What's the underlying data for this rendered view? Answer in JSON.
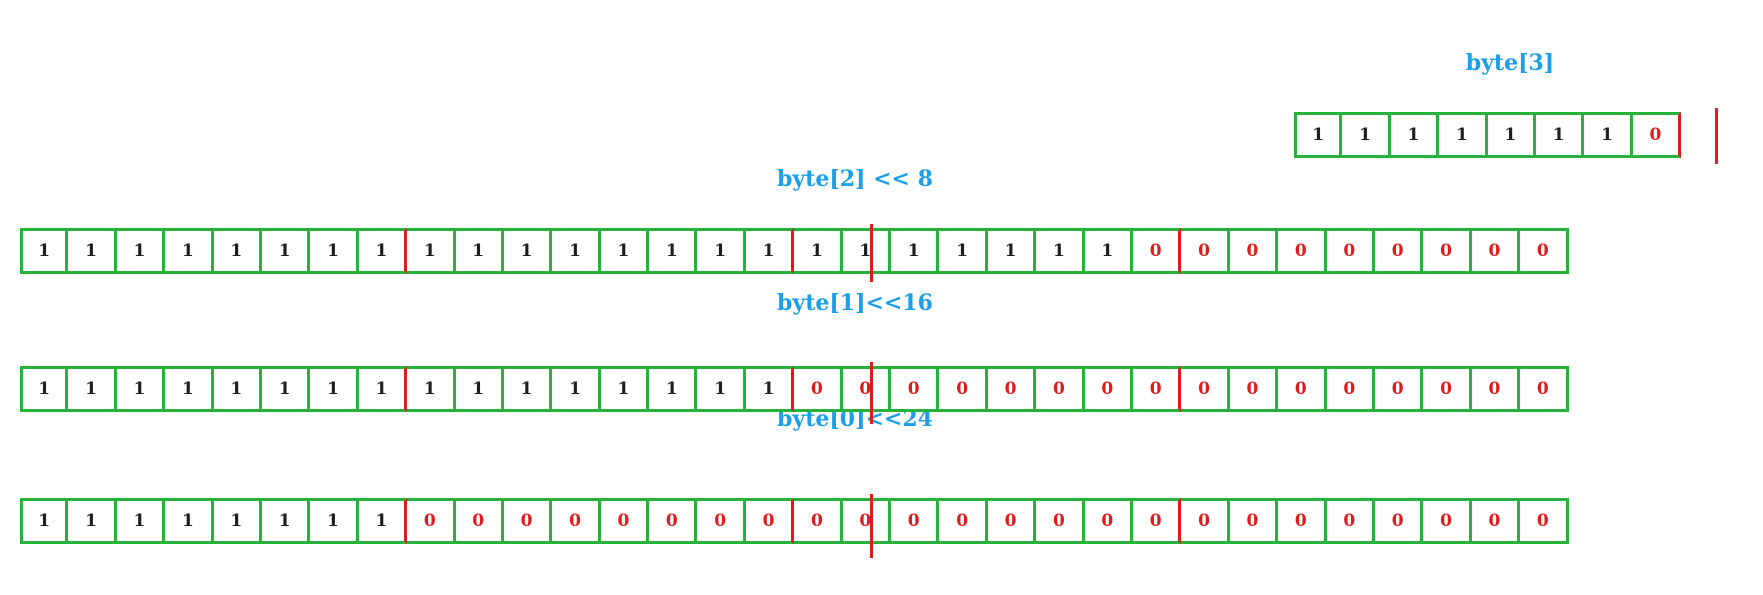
{
  "titles": {
    "byte3": "byte[3]",
    "byte2": "byte[2] << 8",
    "byte1": "byte[1]<<16",
    "byte0": "byte[0]<<24"
  },
  "colors": {
    "title": "#1a9fe8",
    "border": "#27b23c",
    "zero": "#e01b1b",
    "one": "#1e1e1e",
    "separator": "#e01b1b"
  },
  "rows": {
    "byte3": [
      "1",
      "1",
      "1",
      "1",
      "1",
      "1",
      "1",
      "0"
    ],
    "byte2": [
      "1",
      "1",
      "1",
      "1",
      "1",
      "1",
      "1",
      "1",
      "1",
      "1",
      "1",
      "1",
      "1",
      "1",
      "1",
      "1",
      "1",
      "1",
      "1",
      "1",
      "1",
      "1",
      "1",
      "0",
      "0",
      "0",
      "0",
      "0",
      "0",
      "0",
      "0",
      "0"
    ],
    "byte1": [
      "1",
      "1",
      "1",
      "1",
      "1",
      "1",
      "1",
      "1",
      "1",
      "1",
      "1",
      "1",
      "1",
      "1",
      "1",
      "1",
      "0",
      "0",
      "0",
      "0",
      "0",
      "0",
      "0",
      "0",
      "0",
      "0",
      "0",
      "0",
      "0",
      "0",
      "0",
      "0"
    ],
    "byte0": [
      "1",
      "1",
      "1",
      "1",
      "1",
      "1",
      "1",
      "1",
      "0",
      "0",
      "0",
      "0",
      "0",
      "0",
      "0",
      "0",
      "0",
      "0",
      "0",
      "0",
      "0",
      "0",
      "0",
      "0",
      "0",
      "0",
      "0",
      "0",
      "0",
      "0",
      "0",
      "0"
    ]
  }
}
